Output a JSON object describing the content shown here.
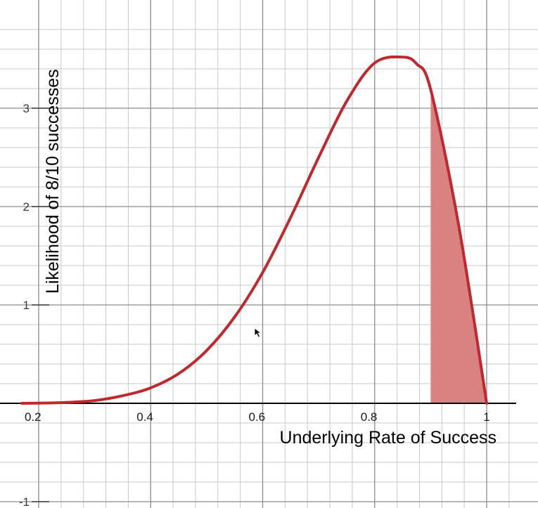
{
  "chart_data": {
    "type": "area",
    "xlabel": "Underlying Rate of Success",
    "ylabel": "Likelihood of 8/10 successes",
    "xlim": [
      0.17,
      1.05
    ],
    "ylim": [
      -1.03,
      3.9
    ],
    "x_ticks": [
      {
        "value": 0.2,
        "label": "0.2"
      },
      {
        "value": 0.4,
        "label": "0.4"
      },
      {
        "value": 0.6,
        "label": "0.6"
      },
      {
        "value": 0.8,
        "label": "0.8"
      },
      {
        "value": 1.0,
        "label": "1"
      }
    ],
    "y_ticks": [
      {
        "value": 1,
        "label": "1"
      },
      {
        "value": 2,
        "label": "2"
      },
      {
        "value": 3,
        "label": "3"
      },
      {
        "value": -1,
        "label": "-1"
      }
    ],
    "grid": true,
    "minor_grid_step_x": 0.04,
    "minor_grid_step_y": 0.2,
    "series": [
      {
        "function": "beta pdf (alpha 9, beta 3)",
        "x": [
          0.17,
          0.2,
          0.25,
          0.3,
          0.35,
          0.4,
          0.45,
          0.5,
          0.55,
          0.6,
          0.65,
          0.7,
          0.75,
          0.8,
          0.85,
          0.875,
          0.9,
          0.95,
          1.0
        ],
        "y": [
          0.0,
          0.002,
          0.009,
          0.028,
          0.077,
          0.157,
          0.302,
          0.537,
          0.878,
          1.33,
          1.89,
          2.5,
          3.07,
          3.46,
          3.52,
          3.45,
          3.19,
          1.81,
          0.0
        ],
        "color": "#c0282d"
      }
    ],
    "shaded_region": {
      "x_from": 0.9,
      "x_to": 1.0,
      "color": "#d98282"
    }
  }
}
